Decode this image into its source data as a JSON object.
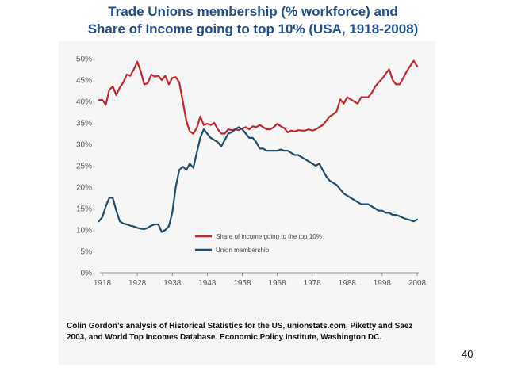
{
  "slide": {
    "title_line1": "Trade Unions membership (% workforce) and",
    "title_line2": "Share of Income going to top 10% (USA, 1918-2008)",
    "source_note": "Colin Gordon’s analysis of Historical Statistics for the US, unionstats.com, Piketty and Saez 2003, and World Top Incomes Database. Economic Policy Institute, Washington DC.",
    "page_number": "40"
  },
  "colors": {
    "title": "#1f4e8c",
    "income_series": "#c1272d",
    "union_series": "#1f4e6b",
    "panel_background": "#f6f6f6"
  },
  "chart_data": {
    "type": "line",
    "title": "",
    "xlabel": "",
    "ylabel": "",
    "xlim": [
      1918,
      2008
    ],
    "ylim": [
      0,
      50
    ],
    "grid": false,
    "legend_placement": "center-right",
    "x_tick_labels": [
      "1918",
      "1928",
      "1938",
      "1948",
      "1958",
      "1968",
      "1978",
      "1988",
      "1998",
      "2008"
    ],
    "y_tick_labels": [
      "0%",
      "5%",
      "10%",
      "15%",
      "20%",
      "25%",
      "30%",
      "35%",
      "40%",
      "45%",
      "50%"
    ],
    "series": [
      {
        "name": "Share of income going to the top 10%",
        "color": "#c1272d",
        "points": [
          [
            1917,
            40.3
          ],
          [
            1918,
            40.4
          ],
          [
            1919,
            39.2
          ],
          [
            1920,
            42.7
          ],
          [
            1921,
            43.5
          ],
          [
            1922,
            41.5
          ],
          [
            1923,
            43.3
          ],
          [
            1924,
            44.5
          ],
          [
            1925,
            46.3
          ],
          [
            1926,
            46.0
          ],
          [
            1927,
            47.5
          ],
          [
            1928,
            49.3
          ],
          [
            1929,
            47.0
          ],
          [
            1930,
            44.0
          ],
          [
            1931,
            44.3
          ],
          [
            1932,
            46.3
          ],
          [
            1933,
            45.8
          ],
          [
            1934,
            46.0
          ],
          [
            1935,
            45.0
          ],
          [
            1936,
            46.0
          ],
          [
            1937,
            44.0
          ],
          [
            1938,
            45.5
          ],
          [
            1939,
            45.7
          ],
          [
            1940,
            44.5
          ],
          [
            1941,
            40.0
          ],
          [
            1942,
            35.5
          ],
          [
            1943,
            33.0
          ],
          [
            1944,
            32.5
          ],
          [
            1945,
            33.8
          ],
          [
            1946,
            36.5
          ],
          [
            1947,
            34.5
          ],
          [
            1948,
            34.8
          ],
          [
            1949,
            34.5
          ],
          [
            1950,
            35.0
          ],
          [
            1951,
            33.5
          ],
          [
            1952,
            32.5
          ],
          [
            1953,
            32.5
          ],
          [
            1954,
            33.5
          ],
          [
            1955,
            33.3
          ],
          [
            1956,
            33.5
          ],
          [
            1957,
            33.3
          ],
          [
            1958,
            33.7
          ],
          [
            1959,
            34.0
          ],
          [
            1960,
            33.5
          ],
          [
            1961,
            34.2
          ],
          [
            1962,
            34.0
          ],
          [
            1963,
            34.5
          ],
          [
            1964,
            34.0
          ],
          [
            1965,
            33.5
          ],
          [
            1966,
            33.5
          ],
          [
            1967,
            34.0
          ],
          [
            1968,
            34.8
          ],
          [
            1969,
            34.2
          ],
          [
            1970,
            33.8
          ],
          [
            1971,
            32.8
          ],
          [
            1972,
            33.2
          ],
          [
            1973,
            33.0
          ],
          [
            1974,
            33.3
          ],
          [
            1975,
            33.2
          ],
          [
            1976,
            33.2
          ],
          [
            1977,
            33.5
          ],
          [
            1978,
            33.2
          ],
          [
            1979,
            33.5
          ],
          [
            1980,
            34.0
          ],
          [
            1981,
            34.5
          ],
          [
            1982,
            35.5
          ],
          [
            1983,
            36.5
          ],
          [
            1984,
            37.0
          ],
          [
            1985,
            37.7
          ],
          [
            1986,
            40.5
          ],
          [
            1987,
            39.5
          ],
          [
            1988,
            41.0
          ],
          [
            1989,
            40.5
          ],
          [
            1990,
            40.0
          ],
          [
            1991,
            39.5
          ],
          [
            1992,
            41.0
          ],
          [
            1993,
            41.0
          ],
          [
            1994,
            41.0
          ],
          [
            1995,
            42.0
          ],
          [
            1996,
            43.5
          ],
          [
            1997,
            44.5
          ],
          [
            1998,
            45.3
          ],
          [
            1999,
            46.5
          ],
          [
            2000,
            47.5
          ],
          [
            2001,
            45.0
          ],
          [
            2002,
            44.0
          ],
          [
            2003,
            44.0
          ],
          [
            2004,
            45.5
          ],
          [
            2005,
            47.0
          ],
          [
            2006,
            48.3
          ],
          [
            2007,
            49.5
          ],
          [
            2008,
            48.2
          ]
        ]
      },
      {
        "name": "Union membership",
        "color": "#1f4e6b",
        "points": [
          [
            1917,
            12.0
          ],
          [
            1918,
            13.0
          ],
          [
            1919,
            15.5
          ],
          [
            1920,
            17.5
          ],
          [
            1921,
            17.5
          ],
          [
            1922,
            14.5
          ],
          [
            1923,
            12.0
          ],
          [
            1924,
            11.5
          ],
          [
            1925,
            11.3
          ],
          [
            1926,
            11.0
          ],
          [
            1927,
            10.8
          ],
          [
            1928,
            10.5
          ],
          [
            1929,
            10.3
          ],
          [
            1930,
            10.2
          ],
          [
            1931,
            10.5
          ],
          [
            1932,
            11.0
          ],
          [
            1933,
            11.3
          ],
          [
            1934,
            11.3
          ],
          [
            1935,
            9.5
          ],
          [
            1936,
            10.0
          ],
          [
            1937,
            10.8
          ],
          [
            1938,
            14.0
          ],
          [
            1939,
            20.0
          ],
          [
            1940,
            24.0
          ],
          [
            1941,
            24.8
          ],
          [
            1942,
            24.0
          ],
          [
            1943,
            25.5
          ],
          [
            1944,
            24.5
          ],
          [
            1945,
            28.0
          ],
          [
            1946,
            31.5
          ],
          [
            1947,
            33.5
          ],
          [
            1948,
            32.5
          ],
          [
            1949,
            31.5
          ],
          [
            1950,
            31.0
          ],
          [
            1951,
            30.5
          ],
          [
            1952,
            29.5
          ],
          [
            1953,
            31.0
          ],
          [
            1954,
            32.5
          ],
          [
            1955,
            32.8
          ],
          [
            1956,
            33.5
          ],
          [
            1957,
            34.0
          ],
          [
            1958,
            33.5
          ],
          [
            1959,
            32.5
          ],
          [
            1960,
            31.5
          ],
          [
            1961,
            31.5
          ],
          [
            1962,
            30.5
          ],
          [
            1963,
            29.0
          ],
          [
            1964,
            29.0
          ],
          [
            1965,
            28.5
          ],
          [
            1966,
            28.5
          ],
          [
            1967,
            28.5
          ],
          [
            1968,
            28.5
          ],
          [
            1969,
            28.8
          ],
          [
            1970,
            28.5
          ],
          [
            1971,
            28.5
          ],
          [
            1972,
            28.0
          ],
          [
            1973,
            27.5
          ],
          [
            1974,
            27.5
          ],
          [
            1975,
            27.0
          ],
          [
            1976,
            26.5
          ],
          [
            1977,
            26.0
          ],
          [
            1978,
            25.5
          ],
          [
            1979,
            25.0
          ],
          [
            1980,
            25.5
          ],
          [
            1981,
            24.0
          ],
          [
            1982,
            22.5
          ],
          [
            1983,
            21.5
          ],
          [
            1984,
            21.0
          ],
          [
            1985,
            20.5
          ],
          [
            1986,
            19.5
          ],
          [
            1987,
            18.5
          ],
          [
            1988,
            18.0
          ],
          [
            1989,
            17.5
          ],
          [
            1990,
            17.0
          ],
          [
            1991,
            16.5
          ],
          [
            1992,
            16.0
          ],
          [
            1993,
            16.0
          ],
          [
            1994,
            16.0
          ],
          [
            1995,
            15.5
          ],
          [
            1996,
            15.0
          ],
          [
            1997,
            14.5
          ],
          [
            1998,
            14.5
          ],
          [
            1999,
            14.0
          ],
          [
            2000,
            14.0
          ],
          [
            2001,
            13.5
          ],
          [
            2002,
            13.5
          ],
          [
            2003,
            13.2
          ],
          [
            2004,
            12.8
          ],
          [
            2005,
            12.5
          ],
          [
            2006,
            12.3
          ],
          [
            2007,
            12.0
          ],
          [
            2008,
            12.4
          ]
        ]
      }
    ]
  }
}
